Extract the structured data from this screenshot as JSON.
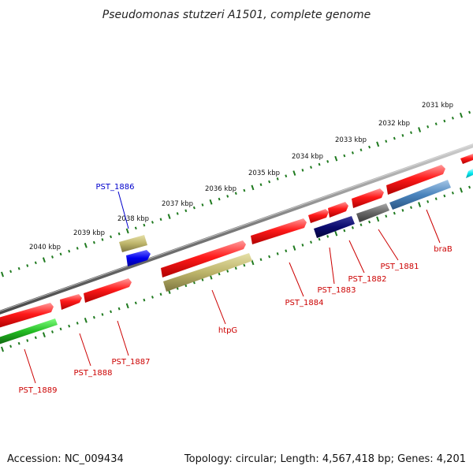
{
  "title": "Pseudomonas stutzeri A1501, complete genome",
  "footer": {
    "accession": "Accession: NC_009434",
    "summary": "Topology: circular; Length: 4,567,418 bp; Genes: 4,201"
  },
  "colors": {
    "backbone": "#888888",
    "cds": "#ff2020",
    "tick": "#1f7a1f",
    "label_red": "#cc0000",
    "label_blue": "#0000cc"
  },
  "ruler_labels": [
    "2031 kbp",
    "2032 kbp",
    "2033 kbp",
    "2034 kbp",
    "2035 kbp",
    "2036 kbp",
    "2037 kbp",
    "2038 kbp",
    "2039 kbp",
    "2040 kbp"
  ],
  "gene_labels": [
    {
      "text": "PST_1886",
      "color": "blue"
    },
    {
      "text": "braB",
      "color": "red"
    },
    {
      "text": "PST_1881",
      "color": "red"
    },
    {
      "text": "PST_1882",
      "color": "red"
    },
    {
      "text": "PST_1883",
      "color": "red"
    },
    {
      "text": "PST_1884",
      "color": "red"
    },
    {
      "text": "htpG",
      "color": "red"
    },
    {
      "text": "PST_1887",
      "color": "red"
    },
    {
      "text": "PST_1888",
      "color": "red"
    },
    {
      "text": "PST_1889",
      "color": "red"
    }
  ]
}
